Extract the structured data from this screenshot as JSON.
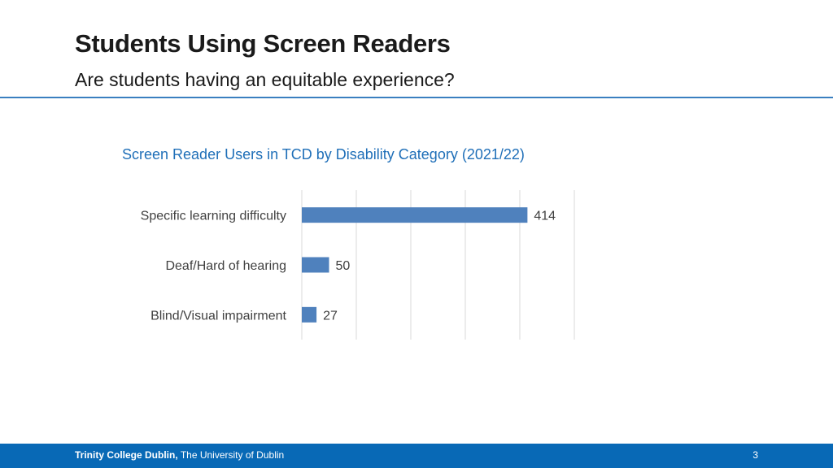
{
  "slide": {
    "title": "Students Using Screen Readers",
    "subtitle": "Are students having an equitable experience?"
  },
  "chart_data": {
    "type": "bar",
    "orientation": "horizontal",
    "title": "Screen Reader Users in TCD by Disability Category (2021/22)",
    "categories": [
      "Specific learning difficulty",
      "Deaf/Hard of hearing",
      "Blind/Visual impairment"
    ],
    "values": [
      414,
      50,
      27
    ],
    "xlim": [
      0,
      500
    ],
    "grid": true,
    "bar_color": "#4f81bd"
  },
  "footer": {
    "org": "Trinity College Dublin,",
    "org_sub": "The University of Dublin",
    "page_number": "3"
  },
  "colors": {
    "accent": "#0869b6",
    "chart_title": "#1f6fb8"
  }
}
